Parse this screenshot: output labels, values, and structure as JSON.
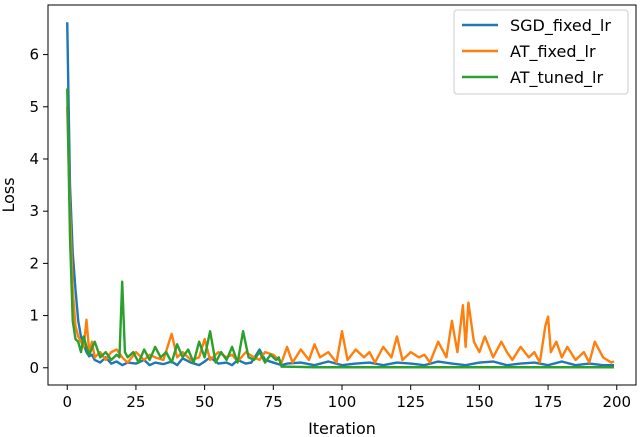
{
  "chart_data": {
    "type": "line",
    "title": "",
    "xlabel": "Iteration",
    "ylabel": "Loss",
    "xlim": [
      -7,
      207
    ],
    "ylim": [
      -0.33,
      6.95
    ],
    "xticks": [
      0,
      25,
      50,
      75,
      100,
      125,
      150,
      175,
      200
    ],
    "yticks": [
      0,
      1,
      2,
      3,
      4,
      5,
      6
    ],
    "grid": false,
    "legend_position": "top-right",
    "series": [
      {
        "name": "SGD_fixed_lr",
        "color": "#1f77b4",
        "x": [
          0,
          1,
          2,
          3,
          4,
          5,
          6,
          7,
          8,
          9,
          10,
          12,
          14,
          16,
          18,
          20,
          22,
          25,
          28,
          30,
          32,
          35,
          38,
          40,
          42,
          45,
          48,
          50,
          52,
          55,
          58,
          60,
          62,
          65,
          67,
          70,
          72,
          75,
          78,
          80,
          85,
          90,
          95,
          100,
          105,
          110,
          115,
          120,
          125,
          130,
          135,
          140,
          145,
          150,
          155,
          160,
          165,
          170,
          175,
          180,
          185,
          190,
          195,
          199
        ],
        "y": [
          6.62,
          3.5,
          2.2,
          1.5,
          0.9,
          0.6,
          0.45,
          0.3,
          0.22,
          0.25,
          0.15,
          0.1,
          0.2,
          0.08,
          0.12,
          0.05,
          0.1,
          0.08,
          0.15,
          0.05,
          0.1,
          0.07,
          0.12,
          0.05,
          0.18,
          0.1,
          0.05,
          0.12,
          0.2,
          0.08,
          0.1,
          0.05,
          0.15,
          0.08,
          0.1,
          0.35,
          0.15,
          0.1,
          0.05,
          0.08,
          0.1,
          0.05,
          0.12,
          0.05,
          0.08,
          0.1,
          0.05,
          0.1,
          0.08,
          0.05,
          0.12,
          0.08,
          0.05,
          0.1,
          0.12,
          0.05,
          0.08,
          0.1,
          0.05,
          0.12,
          0.05,
          0.08,
          0.05,
          0.05
        ]
      },
      {
        "name": "AT_fixed_lr",
        "color": "#ff7f0e",
        "x": [
          0,
          1,
          2,
          3,
          4,
          5,
          6,
          7,
          8,
          9,
          10,
          12,
          14,
          16,
          18,
          20,
          22,
          25,
          28,
          30,
          32,
          35,
          38,
          40,
          42,
          45,
          48,
          50,
          52,
          55,
          58,
          60,
          62,
          65,
          68,
          70,
          72,
          75,
          78,
          80,
          82,
          85,
          88,
          90,
          92,
          95,
          98,
          100,
          102,
          105,
          108,
          110,
          112,
          115,
          118,
          120,
          122,
          125,
          128,
          130,
          132,
          135,
          138,
          140,
          142,
          144,
          145,
          146,
          148,
          150,
          152,
          155,
          158,
          160,
          162,
          165,
          168,
          170,
          172,
          174,
          175,
          176,
          178,
          180,
          182,
          185,
          188,
          190,
          192,
          195,
          198,
          199
        ],
        "y": [
          5.0,
          3.0,
          1.5,
          0.8,
          0.6,
          0.5,
          0.4,
          0.92,
          0.3,
          0.5,
          0.2,
          0.3,
          0.15,
          0.3,
          0.35,
          0.2,
          0.1,
          0.3,
          0.15,
          0.25,
          0.2,
          0.15,
          0.65,
          0.2,
          0.3,
          0.15,
          0.2,
          0.55,
          0.15,
          0.3,
          0.2,
          0.25,
          0.12,
          0.3,
          0.2,
          0.15,
          0.3,
          0.25,
          0.1,
          0.4,
          0.1,
          0.35,
          0.15,
          0.45,
          0.2,
          0.3,
          0.1,
          0.7,
          0.15,
          0.35,
          0.2,
          0.3,
          0.1,
          0.4,
          0.2,
          0.6,
          0.15,
          0.3,
          0.2,
          0.25,
          0.1,
          0.5,
          0.2,
          0.9,
          0.3,
          1.2,
          0.4,
          1.25,
          0.5,
          0.3,
          0.6,
          0.2,
          0.5,
          0.3,
          0.15,
          0.4,
          0.2,
          0.3,
          0.1,
          0.8,
          0.98,
          0.3,
          0.5,
          0.2,
          0.4,
          0.15,
          0.3,
          0.1,
          0.5,
          0.2,
          0.1,
          0.12
        ]
      },
      {
        "name": "AT_tuned_lr",
        "color": "#2ca02c",
        "x": [
          0,
          1,
          2,
          3,
          4,
          5,
          6,
          7,
          8,
          10,
          12,
          14,
          16,
          18,
          19,
          20,
          21,
          22,
          24,
          26,
          28,
          30,
          32,
          34,
          36,
          38,
          40,
          42,
          44,
          46,
          48,
          50,
          52,
          54,
          56,
          58,
          60,
          62,
          64,
          66,
          68,
          70,
          72,
          74,
          76,
          77,
          78,
          80,
          90,
          100,
          120,
          140,
          160,
          180,
          199
        ],
        "y": [
          5.35,
          2.5,
          0.9,
          0.55,
          0.5,
          0.3,
          0.6,
          0.4,
          0.25,
          0.5,
          0.2,
          0.3,
          0.15,
          0.25,
          0.2,
          1.65,
          0.3,
          0.2,
          0.3,
          0.1,
          0.35,
          0.15,
          0.4,
          0.2,
          0.3,
          0.1,
          0.45,
          0.2,
          0.35,
          0.1,
          0.5,
          0.2,
          0.7,
          0.1,
          0.3,
          0.15,
          0.4,
          0.1,
          0.7,
          0.2,
          0.15,
          0.3,
          0.1,
          0.25,
          0.15,
          0.2,
          0.02,
          0.02,
          0.01,
          0.01,
          0.01,
          0.01,
          0.01,
          0.01,
          0.01
        ]
      }
    ]
  }
}
